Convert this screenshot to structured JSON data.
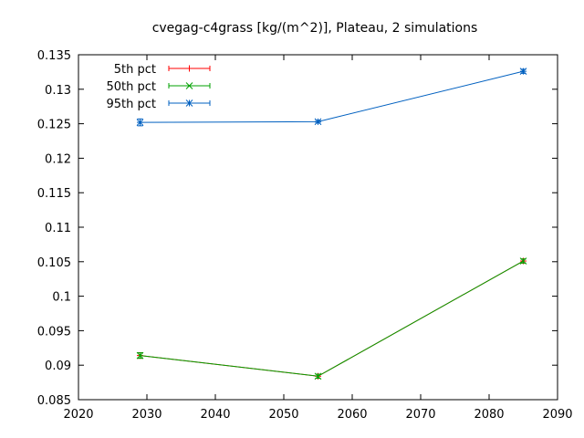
{
  "chart_data": {
    "type": "line",
    "title": "cvegag-c4grass [kg/(m^2)], Plateau, 2 simulations",
    "xlabel": "",
    "ylabel": "",
    "xlim": [
      2020,
      2090
    ],
    "ylim": [
      0.085,
      0.135
    ],
    "xticks": [
      2020,
      2030,
      2040,
      2050,
      2060,
      2070,
      2080,
      2090
    ],
    "yticks": [
      0.085,
      0.09,
      0.095,
      0.1,
      0.105,
      0.11,
      0.115,
      0.12,
      0.125,
      0.13,
      0.135
    ],
    "x": [
      2029,
      2055,
      2085
    ],
    "grid": false,
    "legend_position": "top-left",
    "series": [
      {
        "name": "5th pct",
        "color": "#ff0000",
        "marker": "plus",
        "values": [
          0.0914,
          0.0884,
          0.1051
        ],
        "errors": [
          0.0004,
          0.0003,
          0.0003
        ]
      },
      {
        "name": "50th pct",
        "color": "#00a000",
        "marker": "cross",
        "values": [
          0.0914,
          0.0884,
          0.1051
        ],
        "errors": [
          0.0004,
          0.0003,
          0.0003
        ]
      },
      {
        "name": "95th pct",
        "color": "#0060c0",
        "marker": "star",
        "values": [
          0.1252,
          0.1253,
          0.1326
        ],
        "errors": [
          0.0005,
          0.0002,
          0.0003
        ]
      }
    ]
  }
}
